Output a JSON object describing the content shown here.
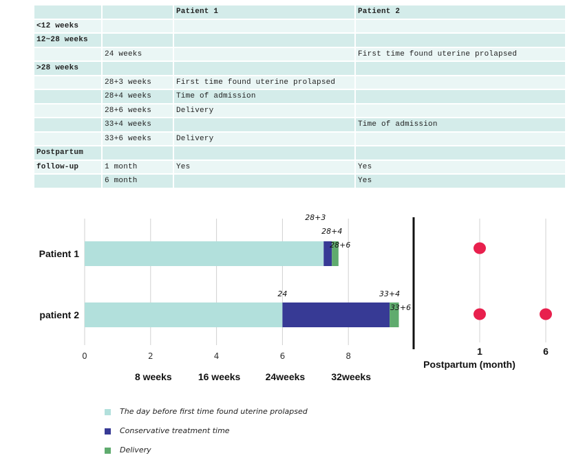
{
  "table": {
    "rows": [
      [
        "",
        "",
        "Patient 1",
        "Patient 2"
      ],
      [
        "<12 weeks",
        "",
        "",
        ""
      ],
      [
        "12~28 weeks",
        "",
        "",
        ""
      ],
      [
        "",
        "24 weeks",
        "",
        "First time found uterine prolapsed"
      ],
      [
        ">28 weeks",
        "",
        "",
        ""
      ],
      [
        "",
        "28+3  weeks",
        "First time found uterine prolapsed",
        ""
      ],
      [
        "",
        "28+4  weeks",
        "Time of admission",
        ""
      ],
      [
        "",
        "28+6  weeks",
        "Delivery",
        ""
      ],
      [
        "",
        "33+4  weeks",
        "",
        "Time of admission"
      ],
      [
        "",
        "33+6  weeks",
        "Delivery",
        ""
      ],
      [
        "Postpartum",
        "",
        "",
        ""
      ],
      [
        "follow-up",
        "1 month",
        "Yes",
        "Yes"
      ],
      [
        "",
        "6 month",
        "",
        "Yes"
      ]
    ]
  },
  "chart_data": [
    {
      "type": "bar",
      "orientation": "horizontal",
      "stacked": true,
      "categories": [
        "Patient 1",
        "patient 2"
      ],
      "series": [
        {
          "name": "The day before first time found uterine prolapsed",
          "values": [
            7.25,
            6.0
          ]
        },
        {
          "name": "Conservative treatment time",
          "values": [
            0.25,
            3.25
          ]
        },
        {
          "name": "Delivery",
          "values": [
            0.2,
            0.28
          ]
        }
      ],
      "xlim": [
        0,
        9.6
      ],
      "xticks": [
        0,
        2,
        4,
        6,
        8
      ],
      "grid": true,
      "week_labels": [
        {
          "x": 2,
          "label": "8 weeks"
        },
        {
          "x": 4,
          "label": "16 weeks"
        },
        {
          "x": 6,
          "label": "24weeks"
        },
        {
          "x": 8,
          "label": "32weeks"
        }
      ],
      "annotations": [
        {
          "category": 0,
          "x": 7.0,
          "text": "28+3"
        },
        {
          "category": 0,
          "x": 7.5,
          "text": "28+4"
        },
        {
          "category": 0,
          "x": 7.75,
          "text": "28+6"
        },
        {
          "category": 1,
          "x": 6.0,
          "text": "24"
        },
        {
          "category": 1,
          "x": 9.25,
          "text": "33+4"
        },
        {
          "category": 1,
          "x": 9.5,
          "text": "33+6"
        }
      ],
      "colors": {
        "teal": "#b2e0dc",
        "navy": "#373a95",
        "green": "#5fab6e"
      }
    },
    {
      "type": "scatter",
      "categories": [
        "Patient 1",
        "patient 2"
      ],
      "xticks": [
        1,
        6
      ],
      "xlabel": "Postpartum (month)",
      "points": [
        {
          "category": 0,
          "x": 1
        },
        {
          "category": 1,
          "x": 1
        },
        {
          "category": 1,
          "x": 6
        }
      ],
      "color": "#e8204d"
    }
  ],
  "legend": [
    {
      "label": "The day before first time found uterine prolapsed",
      "color": "#b2e0dc"
    },
    {
      "label": "Conservative treatment time",
      "color": "#373a95"
    },
    {
      "label": "Delivery",
      "color": "#5fab6e"
    }
  ]
}
